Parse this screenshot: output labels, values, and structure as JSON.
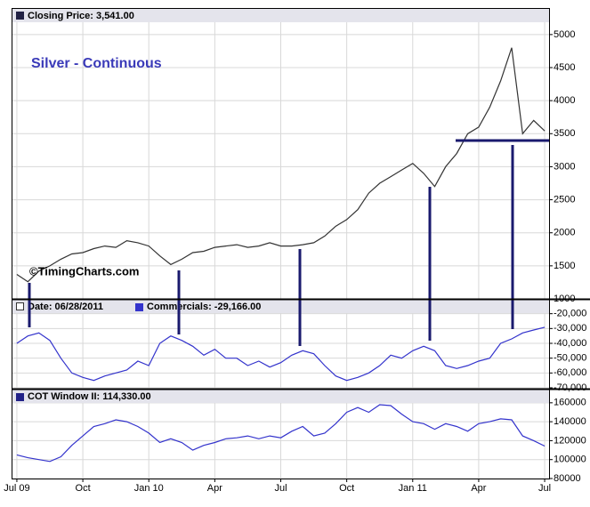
{
  "chart_data": [
    {
      "type": "line",
      "title": "Silver - Continuous",
      "annotation": "©TimingCharts.com",
      "x": [
        0,
        0.5,
        1,
        1.5,
        2,
        2.5,
        3,
        3.5,
        4,
        4.5,
        5,
        5.5,
        6,
        6.5,
        7,
        7.5,
        8,
        8.5,
        9,
        9.5,
        10,
        10.5,
        11,
        11.5,
        12,
        12.5,
        13,
        13.5,
        14,
        14.5,
        15,
        15.5,
        16,
        16.5,
        17,
        17.5,
        18,
        18.5,
        19,
        19.5,
        20,
        20.5,
        21,
        21.5,
        22,
        22.5,
        23,
        23.5,
        24
      ],
      "series": [
        {
          "name": "Closing Price: 3,541.00",
          "color": "#333333",
          "values": [
            1370,
            1260,
            1420,
            1500,
            1600,
            1680,
            1700,
            1760,
            1800,
            1780,
            1880,
            1850,
            1800,
            1650,
            1520,
            1600,
            1700,
            1720,
            1780,
            1800,
            1820,
            1780,
            1800,
            1850,
            1800,
            1800,
            1820,
            1850,
            1950,
            2100,
            2200,
            2350,
            2600,
            2750,
            2850,
            2950,
            3050,
            2900,
            2700,
            3000,
            3200,
            3500,
            3600,
            3900,
            4300,
            4800,
            3500,
            3700,
            3541
          ]
        }
      ],
      "xlim": [
        -0.2,
        24.2
      ],
      "ylim": [
        1000,
        5200
      ],
      "yticks": [
        1000,
        1500,
        2000,
        2500,
        3000,
        3500,
        4000,
        4500,
        5000
      ],
      "grid": true
    },
    {
      "type": "line",
      "date_label": "Date: 06/28/2011",
      "x": [
        0,
        0.5,
        1,
        1.5,
        2,
        2.5,
        3,
        3.5,
        4,
        4.5,
        5,
        5.5,
        6,
        6.5,
        7,
        7.5,
        8,
        8.5,
        9,
        9.5,
        10,
        10.5,
        11,
        11.5,
        12,
        12.5,
        13,
        13.5,
        14,
        14.5,
        15,
        15.5,
        16,
        16.5,
        17,
        17.5,
        18,
        18.5,
        19,
        19.5,
        20,
        20.5,
        21,
        21.5,
        22,
        22.5,
        23,
        23.5,
        24
      ],
      "series": [
        {
          "name": "Commercials: -29,166.00",
          "color": "#3333cc",
          "values": [
            -40000,
            -35000,
            -33000,
            -38000,
            -50000,
            -60000,
            -63000,
            -65000,
            -62000,
            -60000,
            -58000,
            -52000,
            -55000,
            -40000,
            -35000,
            -38000,
            -42000,
            -48000,
            -44000,
            -50000,
            -50000,
            -55000,
            -52000,
            -56000,
            -53000,
            -48000,
            -45000,
            -47000,
            -55000,
            -62000,
            -65000,
            -63000,
            -60000,
            -55000,
            -48000,
            -50000,
            -45000,
            -42000,
            -45000,
            -55000,
            -57000,
            -55000,
            -52000,
            -50000,
            -40000,
            -37000,
            -33000,
            -31000,
            -29166
          ]
        }
      ],
      "xlim": [
        -0.2,
        24.2
      ],
      "ylim": [
        -70000,
        -13000
      ],
      "yticks": [
        {
          "value": -20000,
          "label": "-20,000"
        },
        {
          "value": -30000,
          "label": "-30,000"
        },
        {
          "value": -40000,
          "label": "-40,000"
        },
        {
          "value": -50000,
          "label": "-50,000"
        },
        {
          "value": -60000,
          "label": "-60,000"
        },
        {
          "value": -70000,
          "label": "-70,000"
        }
      ],
      "grid": true
    },
    {
      "type": "line",
      "x": [
        0,
        0.5,
        1,
        1.5,
        2,
        2.5,
        3,
        3.5,
        4,
        4.5,
        5,
        5.5,
        6,
        6.5,
        7,
        7.5,
        8,
        8.5,
        9,
        9.5,
        10,
        10.5,
        11,
        11.5,
        12,
        12.5,
        13,
        13.5,
        14,
        14.5,
        15,
        15.5,
        16,
        16.5,
        17,
        17.5,
        18,
        18.5,
        19,
        19.5,
        20,
        20.5,
        21,
        21.5,
        22,
        22.5,
        23,
        23.5,
        24
      ],
      "series": [
        {
          "name": "COT Window II: 114,330.00",
          "color": "#3333cc",
          "values": [
            105000,
            102000,
            100000,
            98000,
            103000,
            115000,
            125000,
            135000,
            138000,
            142000,
            140000,
            135000,
            128000,
            118000,
            122000,
            118000,
            110000,
            115000,
            118000,
            122000,
            123000,
            125000,
            122000,
            125000,
            123000,
            130000,
            135000,
            125000,
            128000,
            138000,
            150000,
            155000,
            150000,
            158000,
            157000,
            148000,
            140000,
            138000,
            132000,
            138000,
            135000,
            130000,
            138000,
            140000,
            143000,
            142000,
            125000,
            120000,
            114330
          ]
        }
      ],
      "xlim": [
        -0.2,
        24.2
      ],
      "ylim": [
        80000,
        173000
      ],
      "yticks": [
        160000,
        140000,
        120000,
        100000,
        80000
      ],
      "xticks": [
        {
          "value": 0,
          "label": "Jul 09"
        },
        {
          "value": 3,
          "label": "Oct"
        },
        {
          "value": 6,
          "label": "Jan 10"
        },
        {
          "value": 9,
          "label": "Apr"
        },
        {
          "value": 12,
          "label": "Jul"
        },
        {
          "value": 15,
          "label": "Oct"
        },
        {
          "value": 18,
          "label": "Jan 11"
        },
        {
          "value": 21,
          "label": "Apr"
        },
        {
          "value": 24,
          "label": "Jul"
        }
      ],
      "grid": true
    }
  ]
}
